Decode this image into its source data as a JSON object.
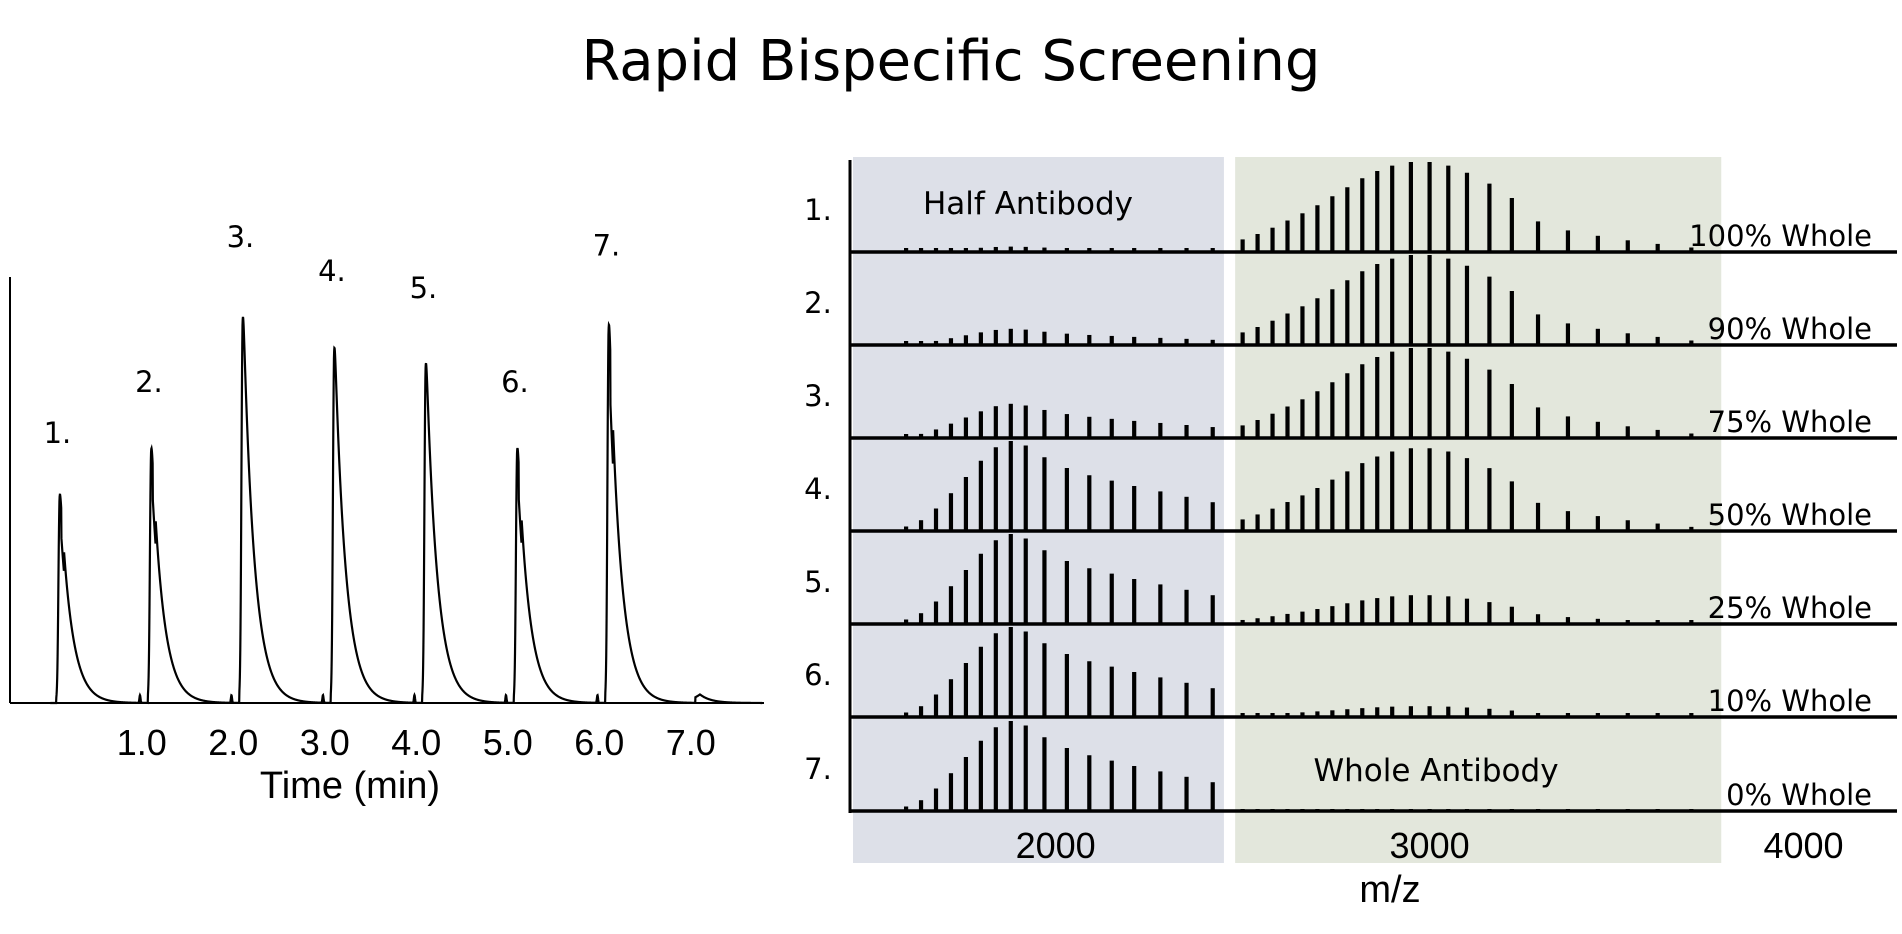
{
  "title": "Rapid Bispecific Screening",
  "chart_data": [
    {
      "type": "line",
      "name": "chromatogram",
      "xlabel": "Time (min)",
      "ylabel": "",
      "xlim": [
        -0.2,
        7.8
      ],
      "ylim": [
        0,
        1.0
      ],
      "x_ticks": [
        "1.0",
        "2.0",
        "3.0",
        "4.0",
        "5.0",
        "6.0",
        "7.0"
      ],
      "x_tick_values": [
        1.0,
        2.0,
        3.0,
        4.0,
        5.0,
        6.0,
        7.0
      ],
      "peaks": [
        {
          "label": "1.",
          "time": 0.1,
          "height": 0.54,
          "split": true
        },
        {
          "label": "2.",
          "time": 1.1,
          "height": 0.66,
          "split": true
        },
        {
          "label": "3.",
          "time": 2.1,
          "height": 1.0,
          "split": false
        },
        {
          "label": "4.",
          "time": 3.1,
          "height": 0.92,
          "split": false
        },
        {
          "label": "5.",
          "time": 4.1,
          "height": 0.88,
          "split": false
        },
        {
          "label": "6.",
          "time": 5.1,
          "height": 0.66,
          "split": true
        },
        {
          "label": "7.",
          "time": 6.1,
          "height": 0.98,
          "split": true
        }
      ],
      "minor_peak": {
        "time": 7.1,
        "height": 0.02
      }
    },
    {
      "type": "bar",
      "name": "mass-spectra",
      "xlabel": "m/z",
      "xlim": [
        1450,
        4250
      ],
      "x_ticks": [
        "2000",
        "3000",
        "4000"
      ],
      "x_tick_values": [
        2000,
        3000,
        4000
      ],
      "regions": [
        {
          "label": "Half Antibody",
          "range": [
            1450,
            2450
          ],
          "color": "#dde0e8"
        },
        {
          "label": "Whole Antibody",
          "range": [
            2480,
            3780
          ],
          "color": "#e3e7dc"
        }
      ],
      "half_envelope": {
        "mz": [
          1600,
          1640,
          1680,
          1720,
          1760,
          1800,
          1840,
          1880,
          1920,
          1970,
          2030,
          2090,
          2150,
          2210,
          2280,
          2350,
          2420
        ],
        "shape": [
          0.05,
          0.12,
          0.25,
          0.42,
          0.6,
          0.78,
          0.93,
          1.0,
          0.95,
          0.82,
          0.7,
          0.62,
          0.56,
          0.5,
          0.44,
          0.38,
          0.32
        ]
      },
      "whole_envelope": {
        "mz": [
          2500,
          2540,
          2580,
          2620,
          2660,
          2700,
          2740,
          2780,
          2820,
          2860,
          2900,
          2950,
          3000,
          3050,
          3100,
          3160,
          3220,
          3290,
          3370,
          3450,
          3530,
          3610,
          3700
        ],
        "shape": [
          0.14,
          0.2,
          0.27,
          0.35,
          0.43,
          0.52,
          0.62,
          0.72,
          0.82,
          0.9,
          0.96,
          1.0,
          1.0,
          0.96,
          0.88,
          0.76,
          0.6,
          0.34,
          0.24,
          0.18,
          0.13,
          0.09,
          0.05
        ]
      },
      "spectra": [
        {
          "label": "1.",
          "annotation": "100% Whole",
          "half_max": 0.06,
          "whole_max": 1.0
        },
        {
          "label": "2.",
          "annotation": "90% Whole",
          "half_max": 0.18,
          "whole_max": 1.0
        },
        {
          "label": "3.",
          "annotation": "75% Whole",
          "half_max": 0.38,
          "whole_max": 1.0
        },
        {
          "label": "4.",
          "annotation": "50% Whole",
          "half_max": 1.0,
          "whole_max": 0.92
        },
        {
          "label": "5.",
          "annotation": "25% Whole",
          "half_max": 1.0,
          "whole_max": 0.32
        },
        {
          "label": "6.",
          "annotation": "10% Whole",
          "half_max": 1.0,
          "whole_max": 0.12
        },
        {
          "label": "7.",
          "annotation": "0% Whole",
          "half_max": 1.0,
          "whole_max": 0.0
        }
      ]
    }
  ]
}
